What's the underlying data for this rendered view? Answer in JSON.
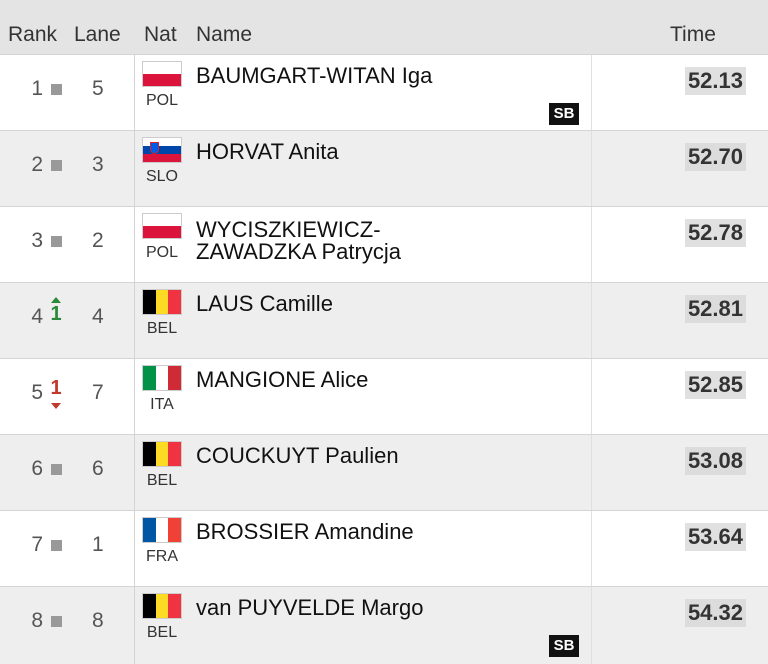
{
  "header": {
    "rank": "Rank",
    "lane": "Lane",
    "nat": "Nat",
    "name": "Name",
    "time": "Time"
  },
  "results": [
    {
      "rank": "1",
      "change": "same",
      "change_value": "",
      "lane": "5",
      "nat": "POL",
      "flag": [
        "#ffffff",
        "#dc143c"
      ],
      "flag_orientation": "horizontal",
      "name": "BAUMGART-WITAN Iga",
      "badge": "SB",
      "time": "52.13"
    },
    {
      "rank": "2",
      "change": "same",
      "change_value": "",
      "lane": "3",
      "nat": "SLO",
      "flag": [
        "#ffffff",
        "#0047ab",
        "#dc143c"
      ],
      "flag_orientation": "horizontal",
      "name": "HORVAT Anita",
      "badge": "",
      "time": "52.70"
    },
    {
      "rank": "3",
      "change": "same",
      "change_value": "",
      "lane": "2",
      "nat": "POL",
      "flag": [
        "#ffffff",
        "#dc143c"
      ],
      "flag_orientation": "horizontal",
      "name": "WYCISZKIEWICZ-ZAWADZKA Patrycja",
      "badge": "",
      "time": "52.78"
    },
    {
      "rank": "4",
      "change": "up",
      "change_value": "1",
      "lane": "4",
      "nat": "BEL",
      "flag": [
        "#000000",
        "#fdda24",
        "#ef3340"
      ],
      "flag_orientation": "vertical",
      "name": "LAUS Camille",
      "badge": "",
      "time": "52.81"
    },
    {
      "rank": "5",
      "change": "down",
      "change_value": "1",
      "lane": "7",
      "nat": "ITA",
      "flag": [
        "#009246",
        "#ffffff",
        "#ce2b37"
      ],
      "flag_orientation": "vertical",
      "name": "MANGIONE Alice",
      "badge": "",
      "time": "52.85"
    },
    {
      "rank": "6",
      "change": "same",
      "change_value": "",
      "lane": "6",
      "nat": "BEL",
      "flag": [
        "#000000",
        "#fdda24",
        "#ef3340"
      ],
      "flag_orientation": "vertical",
      "name": "COUCKUYT Paulien",
      "badge": "",
      "time": "53.08"
    },
    {
      "rank": "7",
      "change": "same",
      "change_value": "",
      "lane": "1",
      "nat": "FRA",
      "flag": [
        "#0055a4",
        "#ffffff",
        "#ef4135"
      ],
      "flag_orientation": "vertical",
      "name": "BROSSIER Amandine",
      "badge": "",
      "time": "53.64"
    },
    {
      "rank": "8",
      "change": "same",
      "change_value": "",
      "lane": "8",
      "nat": "BEL",
      "flag": [
        "#000000",
        "#fdda24",
        "#ef3340"
      ],
      "flag_orientation": "vertical",
      "name": "van PUYVELDE Margo",
      "badge": "SB",
      "time": "54.32"
    }
  ]
}
